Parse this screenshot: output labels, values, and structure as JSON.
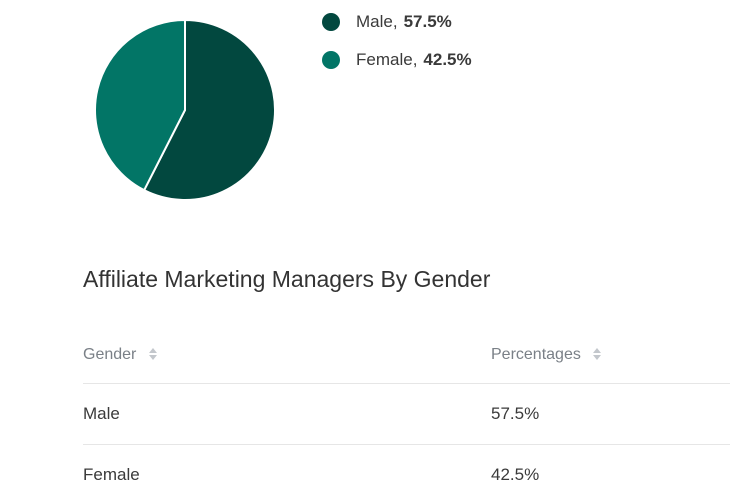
{
  "chart_data": {
    "type": "pie",
    "categories": [
      "Male",
      "Female"
    ],
    "values": [
      57.5,
      42.5
    ],
    "value_labels": [
      "57.5%",
      "42.5%"
    ],
    "colors": [
      "#02483f",
      "#027566"
    ],
    "legend_placement": "right"
  },
  "section": {
    "title": "Affiliate Marketing Managers By Gender"
  },
  "table": {
    "headers": [
      "Gender",
      "Percentages"
    ],
    "rows": [
      [
        "Male",
        "57.5%"
      ],
      [
        "Female",
        "42.5%"
      ]
    ],
    "sort_icon": "sort-icon",
    "header_color": "#7a8087"
  }
}
